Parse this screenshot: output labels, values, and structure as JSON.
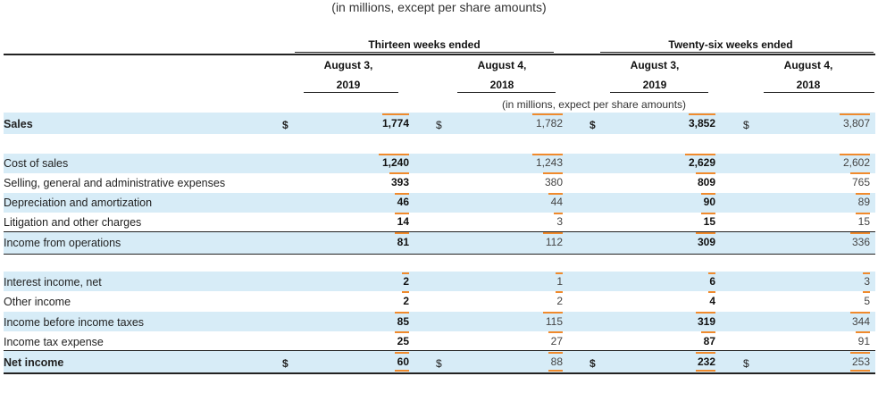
{
  "caption": "(in millions, except per share amounts)",
  "header": {
    "group1": "Thirteen weeks ended",
    "group2": "Twenty-six weeks ended",
    "cols": [
      {
        "date": "August 3,",
        "year": "2019"
      },
      {
        "date": "August 4,",
        "year": "2018"
      },
      {
        "date": "August 3,",
        "year": "2019"
      },
      {
        "date": "August 4,",
        "year": "2018"
      }
    ],
    "subcaption": "(in millions, expect per share amounts)"
  },
  "currency_symbol": "$",
  "rows": [
    {
      "label": "Sales",
      "values": [
        "1,774",
        "1,782",
        "3,852",
        "3,807"
      ]
    },
    {
      "label": "Cost of sales",
      "values": [
        "1,240",
        "1,243",
        "2,629",
        "2,602"
      ]
    },
    {
      "label": "Selling, general and administrative expenses",
      "values": [
        "393",
        "380",
        "809",
        "765"
      ]
    },
    {
      "label": "Depreciation and amortization",
      "values": [
        "46",
        "44",
        "90",
        "89"
      ]
    },
    {
      "label": "Litigation and other charges",
      "values": [
        "14",
        "3",
        "15",
        "15"
      ]
    },
    {
      "label": "Income from operations",
      "values": [
        "81",
        "112",
        "309",
        "336"
      ]
    },
    {
      "label": "Interest income, net",
      "values": [
        "2",
        "1",
        "6",
        "3"
      ]
    },
    {
      "label": "Other income",
      "values": [
        "2",
        "2",
        "4",
        "5"
      ]
    },
    {
      "label": "Income before income taxes",
      "values": [
        "85",
        "115",
        "319",
        "344"
      ]
    },
    {
      "label": "Income tax expense",
      "values": [
        "25",
        "27",
        "87",
        "91"
      ]
    },
    {
      "label": "Net income",
      "values": [
        "60",
        "88",
        "232",
        "253"
      ]
    }
  ]
}
